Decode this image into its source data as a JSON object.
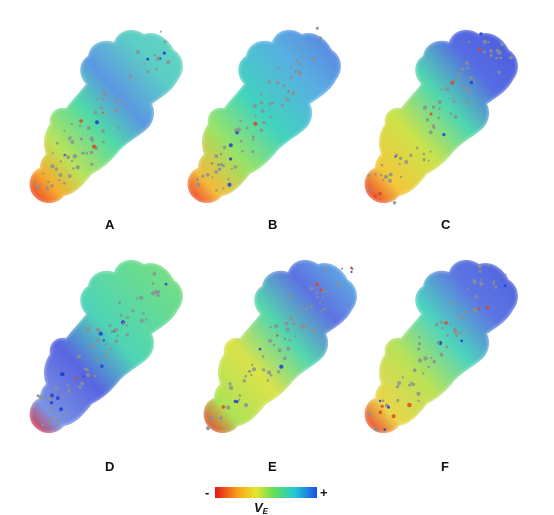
{
  "panels": [
    {
      "label": "A",
      "gradient": "gA"
    },
    {
      "label": "B",
      "gradient": "gB"
    },
    {
      "label": "C",
      "gradient": "gC"
    },
    {
      "label": "D",
      "gradient": "gD"
    },
    {
      "label": "E",
      "gradient": "gE"
    },
    {
      "label": "F",
      "gradient": "gF"
    }
  ],
  "colorbar": {
    "min_symbol": "-",
    "max_symbol": "+",
    "quantity": "V",
    "quantity_subscript": "E",
    "colors": [
      "#e8151b",
      "#f6a21a",
      "#e6e52c",
      "#5fe05a",
      "#23c8d8",
      "#1c50e6"
    ]
  },
  "colors": {
    "red": "#e8151b",
    "orange": "#f6a21a",
    "yellow": "#e6e52c",
    "green": "#5fe05a",
    "cyan": "#23c8d8",
    "blue": "#1c50e6",
    "atom": "#8a9090"
  },
  "icons": [
    "molecule-surface"
  ]
}
